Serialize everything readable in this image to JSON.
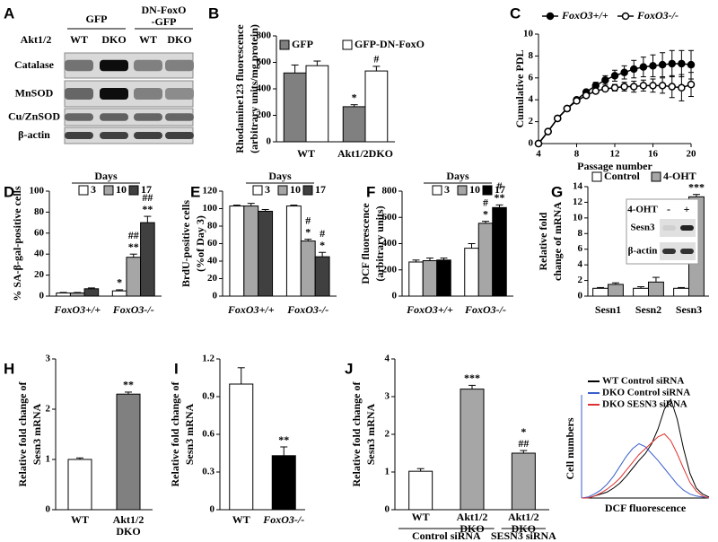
{
  "blot": {
    "panel": "A",
    "row_header": "Akt1/2",
    "groups": [
      [
        "GFP"
      ],
      [
        "DN-FoxO",
        "-GFP"
      ]
    ],
    "lanes": [
      "WT",
      "DKO",
      "WT",
      "DKO"
    ],
    "rows": [
      "Catalase",
      "MnSOD",
      "Cu/ZnSOD",
      "β-actin"
    ]
  },
  "chart_data": [
    {
      "panel": "B",
      "type": "bar",
      "ylabel": [
        "Rhodamine123  fluorescence",
        "(arbitrary units/mg protein)"
      ],
      "categories": [
        "WT",
        "Akt1/2DKO"
      ],
      "series": [
        {
          "name": "GFP",
          "color": "#808080",
          "values": [
            520,
            265
          ],
          "errors": [
            60,
            15
          ],
          "annotations": [
            null,
            [
              "*"
            ]
          ]
        },
        {
          "name": "GFP-DN-FoxO",
          "color": "#ffffff",
          "values": [
            575,
            535
          ],
          "errors": [
            35,
            35
          ],
          "annotations": [
            null,
            [
              "#"
            ]
          ]
        }
      ],
      "ylim": [
        0,
        800
      ],
      "yticks": [
        0,
        200,
        400,
        600,
        800
      ]
    },
    {
      "panel": "C",
      "type": "line",
      "xlabel": "Passage number",
      "ylabel": "Cumulative PDL",
      "x": [
        4,
        5,
        6,
        7,
        8,
        9,
        10,
        11,
        12,
        13,
        14,
        15,
        16,
        17,
        18,
        19,
        20
      ],
      "series": [
        {
          "name": "FoxO3+/+",
          "color": "#000000",
          "marker": "filled",
          "values": [
            0,
            1.1,
            2.3,
            3.2,
            4.0,
            4.7,
            5.3,
            5.8,
            6.2,
            6.5,
            6.8,
            7.0,
            7.1,
            7.2,
            7.3,
            7.3,
            7.2
          ],
          "errors": [
            null,
            null,
            null,
            null,
            null,
            null,
            0.3,
            0.4,
            0.5,
            0.6,
            0.8,
            0.9,
            1.0,
            1.1,
            1.2,
            1.2,
            1.3
          ]
        },
        {
          "name": "FoxO3-/-",
          "color": "#000000",
          "marker": "open",
          "values": [
            0,
            1.1,
            2.3,
            3.2,
            3.9,
            4.4,
            4.8,
            5.0,
            5.1,
            5.2,
            5.2,
            5.3,
            5.3,
            5.3,
            5.2,
            5.1,
            5.4
          ],
          "errors": [
            null,
            null,
            null,
            null,
            null,
            null,
            null,
            null,
            0.3,
            0.4,
            0.5,
            0.5,
            0.6,
            0.7,
            1.0,
            1.2,
            1.1
          ]
        }
      ],
      "xlim": [
        4,
        20
      ],
      "xticks": [
        4,
        8,
        12,
        16,
        20
      ],
      "ylim": [
        0,
        10
      ],
      "yticks": [
        0,
        2,
        4,
        6,
        8,
        10
      ]
    },
    {
      "panel": "D",
      "type": "bar",
      "ylabel": [
        "% SA-β-gal-positive cells"
      ],
      "legend_title": "Days",
      "categories": [
        "FoxO3+/+",
        "FoxO3-/-"
      ],
      "series": [
        {
          "name": "3",
          "color": "#ffffff",
          "values": [
            3,
            5
          ],
          "errors": [
            0.5,
            1
          ],
          "annotations": [
            null,
            [
              "*"
            ]
          ]
        },
        {
          "name": "10",
          "color": "#a6a6a6",
          "values": [
            3,
            37
          ],
          "errors": [
            0.5,
            3
          ],
          "annotations": [
            null,
            [
              "##",
              "**"
            ]
          ]
        },
        {
          "name": "17",
          "color": "#404040",
          "values": [
            7,
            70
          ],
          "errors": [
            0.8,
            6
          ],
          "annotations": [
            null,
            [
              "##",
              "**"
            ]
          ]
        }
      ],
      "ylim": [
        0,
        100
      ],
      "yticks": [
        0,
        20,
        40,
        60,
        80,
        100
      ]
    },
    {
      "panel": "E",
      "type": "bar",
      "ylabel": [
        "BrdU-positive cells",
        "(%of  Day 3)"
      ],
      "legend_title": "Days",
      "categories": [
        "FoxO3+/+",
        "FoxO3-/-"
      ],
      "series": [
        {
          "name": "3",
          "color": "#ffffff",
          "values": [
            103,
            103
          ],
          "errors": [
            1,
            1
          ]
        },
        {
          "name": "10",
          "color": "#a6a6a6",
          "values": [
            103,
            63
          ],
          "errors": [
            3,
            2
          ],
          "annotations": [
            null,
            [
              "#",
              "*"
            ]
          ]
        },
        {
          "name": "17",
          "color": "#404040",
          "values": [
            97,
            45
          ],
          "errors": [
            2,
            5
          ],
          "annotations": [
            null,
            [
              "#",
              "*"
            ]
          ]
        }
      ],
      "ylim": [
        0,
        120
      ],
      "yticks": [
        0,
        20,
        40,
        60,
        80,
        100,
        120
      ]
    },
    {
      "panel": "F",
      "type": "bar",
      "ylabel": [
        "DCF fluorescence",
        "(arbitrary units)"
      ],
      "legend_title": "Days",
      "categories": [
        "FoxO3+/+",
        "FoxO3-/-"
      ],
      "series": [
        {
          "name": "3",
          "color": "#ffffff",
          "values": [
            260,
            365
          ],
          "errors": [
            15,
            35
          ]
        },
        {
          "name": "10",
          "color": "#a6a6a6",
          "values": [
            270,
            555
          ],
          "errors": [
            20,
            15
          ],
          "annotations": [
            null,
            [
              "#",
              "*"
            ]
          ]
        },
        {
          "name": "17",
          "color": "#000000",
          "values": [
            275,
            675
          ],
          "errors": [
            15,
            20
          ],
          "annotations": [
            null,
            [
              "#",
              "**"
            ]
          ]
        }
      ],
      "ylim": [
        0,
        800
      ],
      "yticks": [
        0,
        200,
        400,
        600,
        800
      ]
    },
    {
      "panel": "G",
      "type": "bar",
      "ylabel": [
        "Relative fold",
        "change of mRNA"
      ],
      "categories": [
        "Sesn1",
        "Sesn2",
        "Sesn3"
      ],
      "series": [
        {
          "name": "Control",
          "color": "#ffffff",
          "values": [
            1,
            1,
            1
          ],
          "errors": [
            0.1,
            0.2,
            0.1
          ]
        },
        {
          "name": "4-OHT",
          "color": "#a6a6a6",
          "values": [
            1.5,
            1.8,
            12.7
          ],
          "errors": [
            0.2,
            0.6,
            0.3
          ],
          "annotations": [
            null,
            null,
            [
              "***"
            ]
          ]
        }
      ],
      "ylim": [
        0,
        14
      ],
      "yticks": [
        0,
        2,
        4,
        6,
        8,
        10,
        12,
        14
      ],
      "inset": {
        "header": "4-OHT",
        "lanes": [
          "-",
          "+"
        ],
        "rows": [
          "Sesn3",
          "β-actin"
        ]
      }
    },
    {
      "panel": "H",
      "type": "bar",
      "ylabel": [
        "Relative fold change of",
        "Sesn3 mRNA"
      ],
      "categories": [
        "WT",
        [
          "Akt1/2",
          "DKO"
        ]
      ],
      "series": [
        {
          "colors": [
            "#ffffff",
            "#808080"
          ],
          "values": [
            1,
            2.3
          ],
          "errors": [
            0.03,
            0.04
          ],
          "annotations": [
            null,
            [
              "**"
            ]
          ]
        }
      ],
      "ylim": [
        0,
        3
      ],
      "yticks": [
        0,
        1,
        2,
        3
      ]
    },
    {
      "panel": "I",
      "type": "bar",
      "ylabel": [
        "Relative fold change of",
        "Sesn3 mRNA"
      ],
      "categories": [
        "WT",
        "FoxO3-/-"
      ],
      "series": [
        {
          "colors": [
            "#ffffff",
            "#000000"
          ],
          "values": [
            1.0,
            0.43
          ],
          "errors": [
            0.13,
            0.07
          ],
          "annotations": [
            null,
            [
              "**"
            ]
          ]
        }
      ],
      "ylim": [
        0,
        1.2
      ],
      "yticks": [
        0,
        0.3,
        0.6,
        0.9,
        1.2
      ]
    },
    {
      "panel": "J",
      "type": "bar",
      "ylabel": [
        "Relative fold change of",
        "Sesn3 mRNA"
      ],
      "categories": [
        "WT",
        [
          "Akt1/2",
          "DKO"
        ],
        [
          "Akt1/2",
          "DKO"
        ]
      ],
      "group_labels": [
        "Control siRNA",
        "SESN3 siRNA"
      ],
      "series": [
        {
          "colors": [
            "#ffffff",
            "#a6a6a6",
            "#a6a6a6"
          ],
          "values": [
            1.02,
            3.2,
            1.5
          ],
          "errors": [
            0.07,
            0.1,
            0.07
          ],
          "annotations": [
            null,
            [
              "***"
            ],
            [
              "*",
              "##"
            ]
          ]
        }
      ],
      "ylim": [
        0,
        4
      ],
      "yticks": [
        0,
        1,
        2,
        3,
        4
      ]
    },
    {
      "type": "overlay_histogram",
      "xlabel": "DCF fluorescence",
      "ylabel": "Cell numbers",
      "x": [
        0,
        5,
        10,
        15,
        20,
        25,
        30,
        35,
        40,
        45,
        50,
        55,
        60,
        65,
        70,
        75,
        80,
        85,
        90,
        95,
        100
      ],
      "series": [
        {
          "name": "WT Control siRNA",
          "color": "#000000",
          "values": [
            0,
            0,
            2,
            4,
            6,
            10,
            15,
            22,
            30,
            38,
            45,
            55,
            70,
            90,
            100,
            80,
            50,
            25,
            10,
            4,
            1
          ]
        },
        {
          "name": "DKO Control siRNA",
          "color": "#3a5fcd",
          "values": [
            0,
            1,
            4,
            8,
            14,
            22,
            32,
            42,
            50,
            55,
            52,
            45,
            38,
            30,
            22,
            14,
            8,
            4,
            2,
            1,
            0
          ]
        },
        {
          "name": "DKO SESN3 siRNA",
          "color": "#e03030",
          "values": [
            0,
            0,
            2,
            5,
            9,
            14,
            20,
            28,
            36,
            44,
            50,
            56,
            62,
            65,
            58,
            45,
            30,
            16,
            7,
            2,
            0
          ]
        }
      ],
      "xlim": [
        0,
        100
      ],
      "ylim": [
        0,
        100
      ]
    }
  ]
}
